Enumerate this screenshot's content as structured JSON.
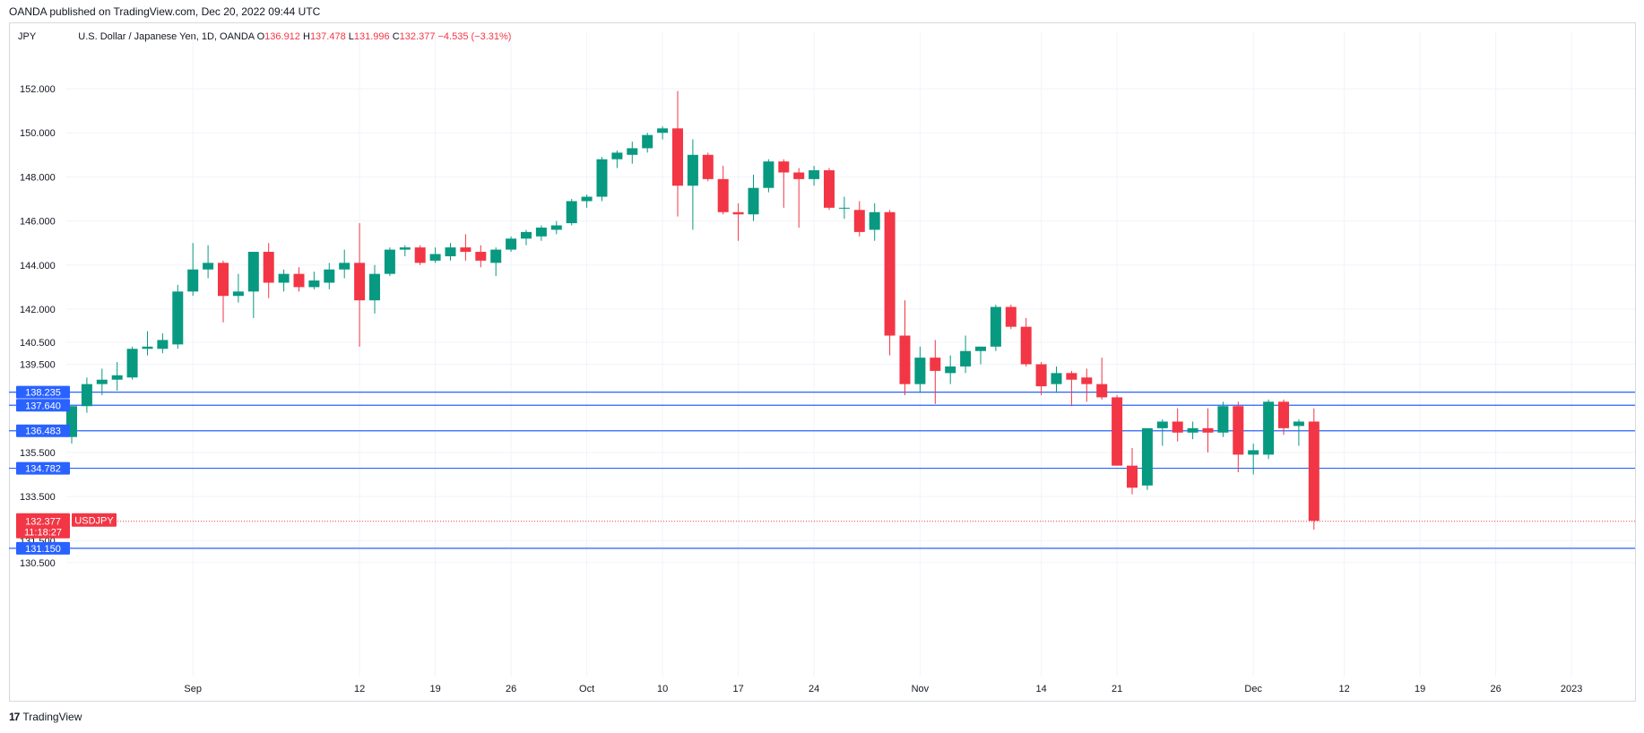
{
  "header": {
    "published": "OANDA published on TradingView.com, Dec 20, 2022 09:44 UTC"
  },
  "legend": {
    "currency": "JPY",
    "title": "U.S. Dollar / Japanese Yen, 1D, OANDA",
    "open_label": "O",
    "open": "136.912",
    "high_label": "H",
    "high": "137.478",
    "low_label": "L",
    "low": "131.996",
    "close_label": "C",
    "close": "132.377",
    "change": "−4.535 (−3.31%)"
  },
  "footer": {
    "logo": "17",
    "brand": "TradingView"
  },
  "colors": {
    "up": "#089981",
    "down": "#f23645",
    "hline": "#2962ff",
    "grid": "#f0f3fa"
  },
  "chart_data": {
    "type": "candlestick",
    "title": "U.S. Dollar / Japanese Yen, 1D, OANDA",
    "symbol": "USDJPY",
    "timeframe": "1D",
    "ylim": [
      130.5,
      152.5
    ],
    "y_ticks": [
      130.5,
      131.5,
      133.5,
      135.5,
      139.5,
      140.5,
      142.0,
      144.0,
      146.0,
      148.0,
      150.0,
      152.0
    ],
    "y_tick_labels": [
      "130.500",
      "131.500",
      "133.500",
      "135.500",
      "139.500",
      "140.500",
      "142.000",
      "144.000",
      "146.000",
      "148.000",
      "150.000",
      "152.000"
    ],
    "x_ticks": [
      {
        "label": "Sep",
        "day": 8
      },
      {
        "label": "12",
        "day": 19
      },
      {
        "label": "19",
        "day": 24
      },
      {
        "label": "26",
        "day": 29
      },
      {
        "label": "Oct",
        "day": 34
      },
      {
        "label": "10",
        "day": 39
      },
      {
        "label": "17",
        "day": 44
      },
      {
        "label": "24",
        "day": 49
      },
      {
        "label": "Nov",
        "day": 56
      },
      {
        "label": "14",
        "day": 64
      },
      {
        "label": "21",
        "day": 69
      },
      {
        "label": "Dec",
        "day": 78
      },
      {
        "label": "12",
        "day": 84
      },
      {
        "label": "19",
        "day": 89
      },
      {
        "label": "26",
        "day": 94
      },
      {
        "label": "2023",
        "day": 99
      }
    ],
    "horizontal_lines": [
      {
        "value": 138.235,
        "label": "138.235"
      },
      {
        "value": 137.64,
        "label": "137.640"
      },
      {
        "value": 136.483,
        "label": "136.483"
      },
      {
        "value": 134.782,
        "label": "134.782"
      },
      {
        "value": 131.15,
        "label": "131.150"
      }
    ],
    "last_price": {
      "value": 132.377,
      "label": "132.377",
      "countdown": "11:18:27",
      "symbol": "USDJPY"
    },
    "candles": [
      {
        "o": 136.2,
        "h": 137.5,
        "l": 135.9,
        "c": 137.6
      },
      {
        "o": 137.6,
        "h": 138.9,
        "l": 137.3,
        "c": 138.6
      },
      {
        "o": 138.6,
        "h": 139.3,
        "l": 138.1,
        "c": 138.8
      },
      {
        "o": 138.8,
        "h": 139.6,
        "l": 138.3,
        "c": 139.0
      },
      {
        "o": 138.9,
        "h": 140.3,
        "l": 138.8,
        "c": 140.2
      },
      {
        "o": 140.2,
        "h": 141.0,
        "l": 139.9,
        "c": 140.3
      },
      {
        "o": 140.2,
        "h": 140.9,
        "l": 140.0,
        "c": 140.6
      },
      {
        "o": 140.4,
        "h": 143.1,
        "l": 140.2,
        "c": 142.8
      },
      {
        "o": 142.8,
        "h": 145.0,
        "l": 142.6,
        "c": 143.8
      },
      {
        "o": 143.8,
        "h": 144.9,
        "l": 143.4,
        "c": 144.1
      },
      {
        "o": 144.1,
        "h": 144.2,
        "l": 141.4,
        "c": 142.6
      },
      {
        "o": 142.6,
        "h": 143.6,
        "l": 142.3,
        "c": 142.8
      },
      {
        "o": 142.8,
        "h": 144.6,
        "l": 141.6,
        "c": 144.6
      },
      {
        "o": 144.6,
        "h": 145.0,
        "l": 142.5,
        "c": 143.2
      },
      {
        "o": 143.2,
        "h": 143.8,
        "l": 142.8,
        "c": 143.6
      },
      {
        "o": 143.6,
        "h": 143.9,
        "l": 142.8,
        "c": 143.0
      },
      {
        "o": 143.0,
        "h": 143.7,
        "l": 142.9,
        "c": 143.3
      },
      {
        "o": 143.2,
        "h": 144.1,
        "l": 142.9,
        "c": 143.8
      },
      {
        "o": 143.8,
        "h": 144.7,
        "l": 143.4,
        "c": 144.1
      },
      {
        "o": 144.1,
        "h": 145.9,
        "l": 140.3,
        "c": 142.4
      },
      {
        "o": 142.4,
        "h": 144.0,
        "l": 141.8,
        "c": 143.6
      },
      {
        "o": 143.6,
        "h": 144.8,
        "l": 143.5,
        "c": 144.7
      },
      {
        "o": 144.7,
        "h": 144.9,
        "l": 144.4,
        "c": 144.8
      },
      {
        "o": 144.8,
        "h": 144.9,
        "l": 144.0,
        "c": 144.1
      },
      {
        "o": 144.2,
        "h": 144.8,
        "l": 144.1,
        "c": 144.5
      },
      {
        "o": 144.4,
        "h": 145.0,
        "l": 144.2,
        "c": 144.8
      },
      {
        "o": 144.8,
        "h": 145.4,
        "l": 144.2,
        "c": 144.6
      },
      {
        "o": 144.6,
        "h": 144.9,
        "l": 143.9,
        "c": 144.2
      },
      {
        "o": 144.1,
        "h": 144.8,
        "l": 143.5,
        "c": 144.7
      },
      {
        "o": 144.7,
        "h": 145.3,
        "l": 144.6,
        "c": 145.2
      },
      {
        "o": 145.2,
        "h": 145.6,
        "l": 144.9,
        "c": 145.5
      },
      {
        "o": 145.3,
        "h": 145.8,
        "l": 145.1,
        "c": 145.7
      },
      {
        "o": 145.6,
        "h": 146.0,
        "l": 145.4,
        "c": 145.8
      },
      {
        "o": 145.9,
        "h": 147.0,
        "l": 145.8,
        "c": 146.9
      },
      {
        "o": 146.9,
        "h": 147.2,
        "l": 146.6,
        "c": 147.1
      },
      {
        "o": 147.1,
        "h": 148.9,
        "l": 146.9,
        "c": 148.8
      },
      {
        "o": 148.8,
        "h": 149.2,
        "l": 148.4,
        "c": 149.1
      },
      {
        "o": 149.0,
        "h": 149.6,
        "l": 148.6,
        "c": 149.3
      },
      {
        "o": 149.3,
        "h": 150.0,
        "l": 149.1,
        "c": 149.9
      },
      {
        "o": 150.0,
        "h": 150.3,
        "l": 149.7,
        "c": 150.2
      },
      {
        "o": 150.2,
        "h": 151.9,
        "l": 146.2,
        "c": 147.6
      },
      {
        "o": 147.6,
        "h": 149.7,
        "l": 145.6,
        "c": 149.0
      },
      {
        "o": 149.0,
        "h": 149.1,
        "l": 147.8,
        "c": 147.9
      },
      {
        "o": 147.9,
        "h": 148.5,
        "l": 146.3,
        "c": 146.4
      },
      {
        "o": 146.4,
        "h": 146.8,
        "l": 145.1,
        "c": 146.3
      },
      {
        "o": 146.3,
        "h": 148.1,
        "l": 146.0,
        "c": 147.5
      },
      {
        "o": 147.5,
        "h": 148.8,
        "l": 147.3,
        "c": 148.7
      },
      {
        "o": 148.7,
        "h": 148.8,
        "l": 146.6,
        "c": 148.2
      },
      {
        "o": 148.2,
        "h": 148.4,
        "l": 145.7,
        "c": 147.9
      },
      {
        "o": 147.9,
        "h": 148.5,
        "l": 147.6,
        "c": 148.3
      },
      {
        "o": 148.3,
        "h": 148.4,
        "l": 146.5,
        "c": 146.6
      },
      {
        "o": 146.6,
        "h": 147.1,
        "l": 146.1,
        "c": 146.6
      },
      {
        "o": 146.5,
        "h": 146.9,
        "l": 145.3,
        "c": 145.5
      },
      {
        "o": 145.6,
        "h": 146.8,
        "l": 145.1,
        "c": 146.4
      },
      {
        "o": 146.4,
        "h": 146.5,
        "l": 139.9,
        "c": 140.8
      },
      {
        "o": 140.8,
        "h": 142.4,
        "l": 138.1,
        "c": 138.6
      },
      {
        "o": 138.6,
        "h": 140.3,
        "l": 138.2,
        "c": 139.8
      },
      {
        "o": 139.8,
        "h": 140.6,
        "l": 137.7,
        "c": 139.2
      },
      {
        "o": 139.1,
        "h": 139.9,
        "l": 138.6,
        "c": 139.4
      },
      {
        "o": 139.4,
        "h": 140.8,
        "l": 139.1,
        "c": 140.1
      },
      {
        "o": 140.1,
        "h": 140.3,
        "l": 139.5,
        "c": 140.3
      },
      {
        "o": 140.3,
        "h": 142.2,
        "l": 140.1,
        "c": 142.1
      },
      {
        "o": 142.1,
        "h": 142.2,
        "l": 141.1,
        "c": 141.2
      },
      {
        "o": 141.2,
        "h": 141.6,
        "l": 139.4,
        "c": 139.5
      },
      {
        "o": 139.5,
        "h": 139.6,
        "l": 138.1,
        "c": 138.5
      },
      {
        "o": 138.6,
        "h": 139.4,
        "l": 138.2,
        "c": 139.1
      },
      {
        "o": 139.1,
        "h": 139.2,
        "l": 137.6,
        "c": 138.8
      },
      {
        "o": 138.9,
        "h": 139.3,
        "l": 137.8,
        "c": 138.6
      },
      {
        "o": 138.6,
        "h": 139.8,
        "l": 137.9,
        "c": 138.0
      },
      {
        "o": 138.0,
        "h": 138.1,
        "l": 134.9,
        "c": 134.9
      },
      {
        "o": 134.9,
        "h": 135.7,
        "l": 133.6,
        "c": 133.9
      },
      {
        "o": 134.0,
        "h": 136.6,
        "l": 133.8,
        "c": 136.6
      },
      {
        "o": 136.6,
        "h": 137.0,
        "l": 135.8,
        "c": 136.9
      },
      {
        "o": 136.9,
        "h": 137.5,
        "l": 136.0,
        "c": 136.4
      },
      {
        "o": 136.4,
        "h": 136.9,
        "l": 136.1,
        "c": 136.6
      },
      {
        "o": 136.6,
        "h": 137.5,
        "l": 135.5,
        "c": 136.4
      },
      {
        "o": 136.4,
        "h": 137.8,
        "l": 136.2,
        "c": 137.6
      },
      {
        "o": 137.6,
        "h": 137.8,
        "l": 134.6,
        "c": 135.4
      },
      {
        "o": 135.4,
        "h": 135.9,
        "l": 134.5,
        "c": 135.6
      },
      {
        "o": 135.4,
        "h": 137.9,
        "l": 135.2,
        "c": 137.8
      },
      {
        "o": 137.8,
        "h": 137.9,
        "l": 136.3,
        "c": 136.6
      },
      {
        "o": 136.7,
        "h": 137.0,
        "l": 135.8,
        "c": 136.9
      },
      {
        "o": 136.9,
        "h": 137.5,
        "l": 132.0,
        "c": 132.4
      }
    ]
  }
}
